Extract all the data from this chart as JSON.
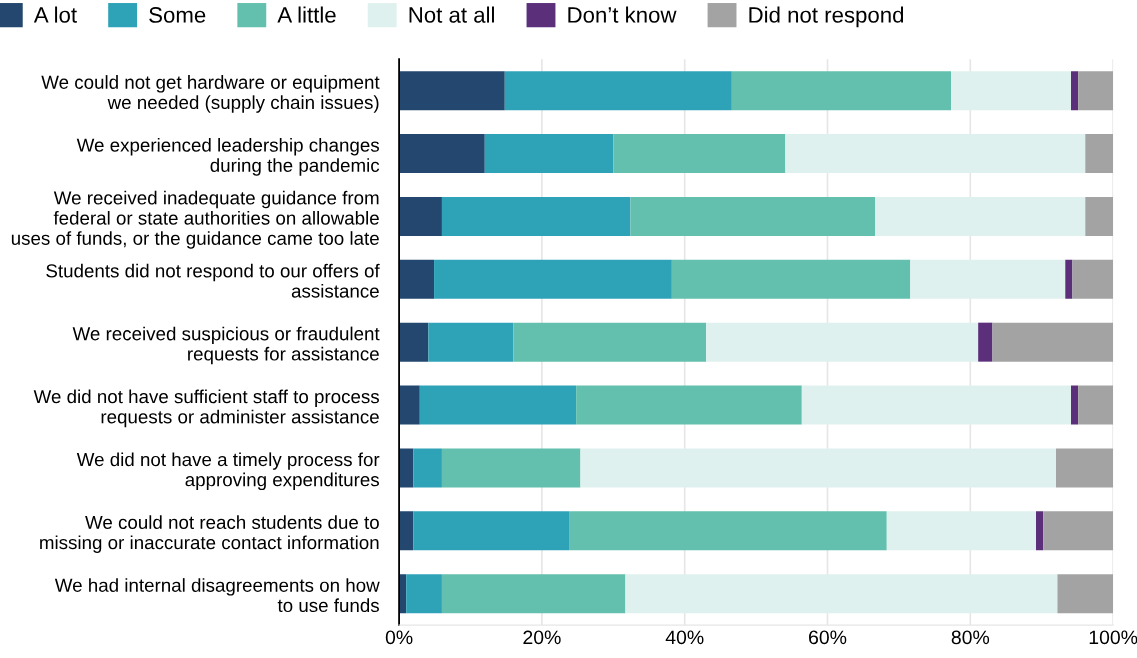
{
  "chart_data": {
    "type": "bar",
    "orientation": "horizontal",
    "stacked": true,
    "legend": "top",
    "grid": "x",
    "categories": [
      "We could not get hardware or equipment\nwe needed (supply chain issues)",
      "We experienced leadership changes\nduring the pandemic",
      "We received inadequate guidance from\nfederal or state authorities on allowable\nuses of funds, or the guidance came too late",
      "Students did not respond to our offers of\nassistance",
      "We received suspicious or fraudulent\nrequests for assistance",
      "We did not have sufficient staff to process\nrequests or administer assistance",
      "We did not have a timely process for\napproving expenditures",
      "We could not reach students due to\nmissing or inaccurate contact information",
      "We had internal disagreements on how\nto use funds"
    ],
    "series": [
      {
        "name": "A lot",
        "color": "#23476e",
        "values": [
          14.8,
          12.0,
          6.0,
          4.9,
          4.1,
          2.9,
          2.0,
          2.0,
          1.0
        ]
      },
      {
        "name": "Some",
        "color": "#2ea3b8",
        "values": [
          31.8,
          18.0,
          26.4,
          33.3,
          11.9,
          21.9,
          4.0,
          21.8,
          5.0
        ]
      },
      {
        "name": "A little",
        "color": "#63c0ae",
        "values": [
          30.7,
          24.1,
          34.3,
          33.4,
          27.0,
          31.6,
          19.4,
          44.5,
          25.7
        ]
      },
      {
        "name": "Not at all",
        "color": "#dff1ee",
        "values": [
          16.8,
          42.0,
          29.4,
          21.7,
          38.1,
          37.7,
          66.6,
          20.9,
          60.5
        ]
      },
      {
        "name": "Don’t know",
        "color": "#5b2f7a",
        "values": [
          1.0,
          0,
          0,
          1.0,
          2.0,
          1.0,
          0,
          1.0,
          0
        ]
      },
      {
        "name": "Did not respond",
        "color": "#a3a3a3",
        "values": [
          4.9,
          3.9,
          3.9,
          5.7,
          16.9,
          4.9,
          8.0,
          9.8,
          7.8
        ]
      }
    ],
    "xlim": [
      0,
      100
    ],
    "xticks": [
      {
        "value": 0,
        "label": "0%"
      },
      {
        "value": 20,
        "label": "20%"
      },
      {
        "value": 40,
        "label": "40%"
      },
      {
        "value": 60,
        "label": "60%"
      },
      {
        "value": 80,
        "label": "80%"
      },
      {
        "value": 100,
        "label": "100%"
      }
    ]
  }
}
